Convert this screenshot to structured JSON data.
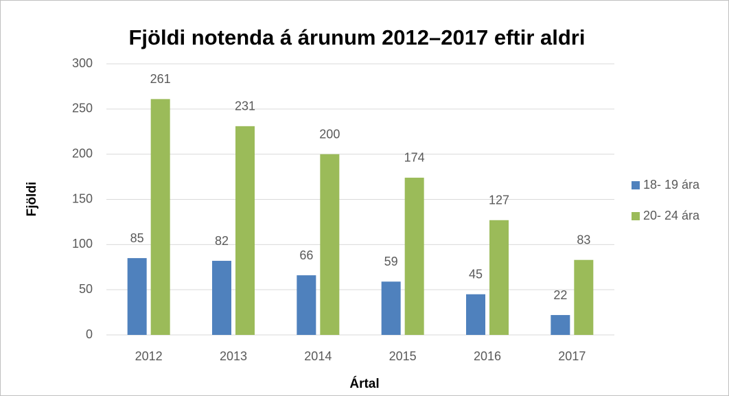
{
  "chart_data": {
    "type": "bar",
    "title": "Fjöldi notenda á árunum 2012–2017 eftir aldri",
    "x_label": "Ártal",
    "y_label": "Fjöldi",
    "categories": [
      "2012",
      "2013",
      "2014",
      "2015",
      "2016",
      "2017"
    ],
    "series": [
      {
        "name": "18- 19 ára",
        "color": "#4f81bd",
        "values": [
          85,
          82,
          66,
          59,
          45,
          22
        ]
      },
      {
        "name": "20- 24 ára",
        "color": "#9bbb59",
        "values": [
          261,
          231,
          200,
          174,
          127,
          83
        ]
      }
    ],
    "ylim": [
      0,
      300
    ],
    "yticks": [
      0,
      50,
      100,
      150,
      200,
      250,
      300
    ],
    "grid": true,
    "legend": "right"
  }
}
